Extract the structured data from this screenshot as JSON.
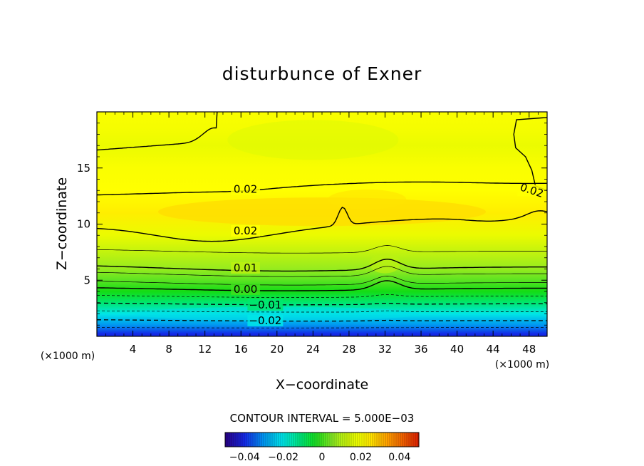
{
  "chart_data": {
    "type": "contour",
    "title": "disturbunce of Exner",
    "xlabel": "X−coordinate",
    "ylabel": "Z−coordinate",
    "x_unit_label": "(×1000 m)",
    "y_unit_label": "(×1000 m)",
    "xlim": [
      0,
      50
    ],
    "ylim": [
      0,
      20
    ],
    "x_ticks": [
      4,
      8,
      12,
      16,
      20,
      24,
      28,
      32,
      36,
      40,
      44,
      48
    ],
    "x_tick_labels": [
      "4",
      "8",
      "12",
      "16",
      "20",
      "24",
      "28",
      "32",
      "36",
      "40",
      "44",
      "48"
    ],
    "y_ticks": [
      5,
      10,
      15
    ],
    "y_tick_labels": [
      "5",
      "10",
      "15"
    ],
    "contour_interval_text": "CONTOUR INTERVAL = 5.000E−03",
    "contour_interval": 0.005,
    "contour_labels": [
      {
        "text": "0.02",
        "x": 16.5,
        "z": 13.1
      },
      {
        "text": "0.02",
        "x": 16.5,
        "z": 9.4
      },
      {
        "text": "0.02",
        "x": 48.3,
        "z": 13.0
      },
      {
        "text": "0.01",
        "x": 16.5,
        "z": 6.1
      },
      {
        "text": "0.00",
        "x": 16.5,
        "z": 4.2
      },
      {
        "text": "−0.01",
        "x": 18.7,
        "z": 2.8
      },
      {
        "text": "−0.02",
        "x": 18.7,
        "z": 1.4
      }
    ],
    "field_levels_z": [
      0.2,
      1.0,
      2.0,
      3.0,
      4.0,
      5.0,
      6.0,
      7.5,
      9.0,
      11.0,
      13.0,
      15.0,
      17.0,
      18.5,
      20.0
    ],
    "field_values": [
      -0.04,
      -0.03,
      -0.02,
      -0.01,
      -0.003,
      0.002,
      0.007,
      0.012,
      0.018,
      0.024,
      0.022,
      0.021,
      0.018,
      0.02,
      0.021
    ],
    "colorbar": {
      "range": [
        -0.05,
        0.05
      ],
      "ticks": [
        -0.04,
        -0.02,
        0,
        0.02,
        0.04
      ],
      "tick_labels": [
        "−0.04",
        "−0.02",
        "0",
        "0.02",
        "0.04"
      ]
    }
  }
}
